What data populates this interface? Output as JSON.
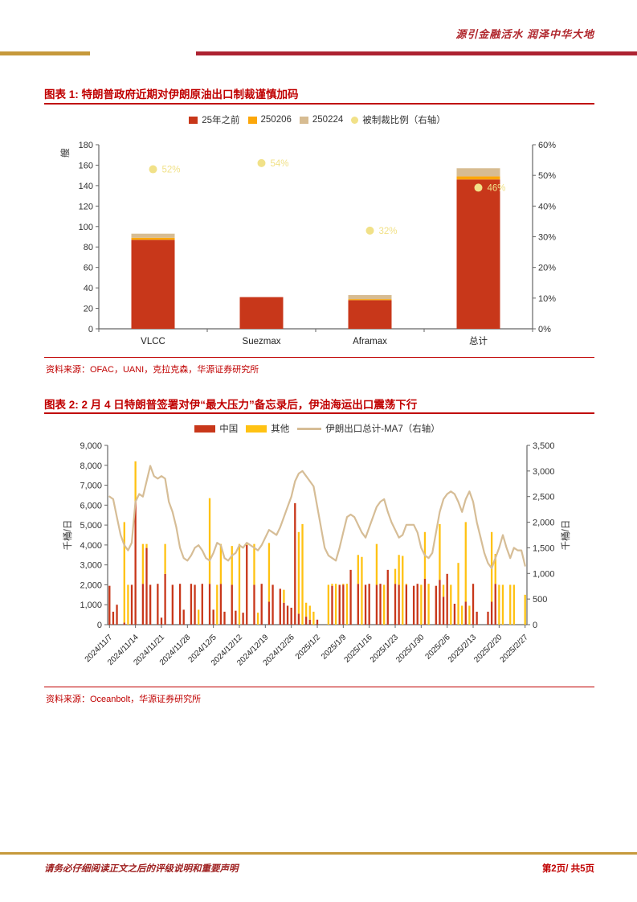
{
  "page": {
    "slogan": "源引金融活水 润泽中华大地",
    "footer_disclaimer": "请务必仔细阅读正文之后的评级说明和重要声明",
    "page_number": "第2页/ 共5页"
  },
  "colors": {
    "title_red": "#C00000",
    "rule_gold": "#C6993B",
    "rule_red": "#AD2231",
    "bar_red": "#C8371A",
    "fig1_yellow": "#FCA70A",
    "fig1_tan": "#D7BC92",
    "fig2_yellow": "#FFC213",
    "ma7_tan": "#D6BD96",
    "scatter_yellow": "#F1E188"
  },
  "figure1": {
    "title": "图表 1: 特朗普政府近期对伊朗原油出口制裁谨慎加码",
    "source": "资料来源：OFAC，UANI，克拉克森，华源证券研究所",
    "legend": [
      {
        "label": "25年之前"
      },
      {
        "label": "250206"
      },
      {
        "label": "250224"
      },
      {
        "label": "被制裁比例（右轴）"
      }
    ]
  },
  "figure2": {
    "title": "图表 2: 2 月 4 日特朗普签署对伊“最大压力”备忘录后，伊油海运出口震荡下行",
    "source": "资料来源：Oceanbolt，华源证券研究所",
    "legend": [
      {
        "label": "中国"
      },
      {
        "label": "其他"
      },
      {
        "label": "伊朗出口总计-MA7（右轴）"
      }
    ]
  },
  "chart_data": [
    {
      "type": "bar",
      "title": "特朗普政府近期对伊朗原油出口制裁谨慎加码",
      "categories": [
        "VLCC",
        "Suezmax",
        "Aframax",
        "总计"
      ],
      "series": [
        {
          "name": "25年之前",
          "type": "bar",
          "color": "#C8371A",
          "values": [
            87,
            31,
            28,
            146
          ]
        },
        {
          "name": "250206",
          "type": "bar",
          "color": "#FCA70A",
          "values": [
            2,
            0,
            1,
            3
          ]
        },
        {
          "name": "250224",
          "type": "bar",
          "color": "#D7BC92",
          "values": [
            4,
            0,
            4,
            8
          ]
        },
        {
          "name": "被制裁比例（右轴）",
          "type": "scatter",
          "axis": "right",
          "color": "#F1E188",
          "values": [
            52,
            54,
            32,
            46
          ],
          "labels": [
            "52%",
            "54%",
            "32%",
            "46%"
          ]
        }
      ],
      "ylabel_left": "艘",
      "ylim_left": [
        0,
        180
      ],
      "yticks_left": [
        0,
        20,
        40,
        60,
        80,
        100,
        120,
        140,
        160,
        180
      ],
      "ylim_right": [
        0,
        60
      ],
      "yticks_right": [
        "0%",
        "10%",
        "20%",
        "30%",
        "40%",
        "50%",
        "60%"
      ],
      "legend_position": "top",
      "grid": false
    },
    {
      "type": "bar+line",
      "title": "2 月 4 日特朗普签署对伊“最大压力”备忘录后，伊油海运出口震荡下行",
      "n_days": 113,
      "xtick_labels": [
        "2024/11/7",
        "2024/11/14",
        "2024/11/21",
        "2024/11/28",
        "2024/12/5",
        "2024/12/12",
        "2024/12/19",
        "2024/12/26",
        "2025/1/2",
        "2025/1/9",
        "2025/1/16",
        "2025/1/23",
        "2025/1/30",
        "2025/2/6",
        "2025/2/13",
        "2025/2/20",
        "2025/2/27"
      ],
      "xtick_every": 7,
      "ylabel_left": "千桶/日",
      "ylabel_right": "千桶/日",
      "ylim_left": [
        0,
        9000
      ],
      "yticks_left": [
        "0",
        "1,000",
        "2,000",
        "3,000",
        "4,000",
        "5,000",
        "6,000",
        "7,000",
        "8,000",
        "9,000"
      ],
      "ylim_right": [
        0,
        3500
      ],
      "yticks_right": [
        "0",
        "500",
        "1,000",
        "1,500",
        "2,000",
        "2,500",
        "3,000",
        "3,500"
      ],
      "series": [
        {
          "name": "中国",
          "type": "bar",
          "color": "#C8371A",
          "values": [
            1950,
            650,
            1000,
            0,
            100,
            0,
            2000,
            6150,
            0,
            2050,
            3850,
            2000,
            0,
            2050,
            350,
            2550,
            0,
            2000,
            0,
            2050,
            750,
            0,
            2050,
            2000,
            0,
            2050,
            0,
            2050,
            750,
            0,
            2050,
            650,
            0,
            2000,
            700,
            0,
            600,
            4000,
            0,
            2000,
            0,
            2050,
            0,
            1150,
            2000,
            0,
            1800,
            1100,
            950,
            850,
            6100,
            550,
            0,
            400,
            250,
            0,
            250,
            0,
            0,
            0,
            1950,
            0,
            2000,
            2000,
            0,
            2750,
            0,
            2050,
            0,
            2000,
            2050,
            0,
            2000,
            2050,
            0,
            2750,
            0,
            2050,
            2000,
            0,
            2000,
            0,
            1950,
            2050,
            0,
            2300,
            0,
            0,
            1950,
            2250,
            1400,
            2550,
            0,
            1050,
            0,
            0,
            1150,
            0,
            2050,
            650,
            0,
            0,
            650,
            1150,
            2050,
            0,
            0,
            0,
            0,
            0,
            0,
            0,
            0
          ]
        },
        {
          "name": "其他",
          "type": "bar",
          "color": "#FFC213",
          "values": [
            0,
            0,
            0,
            0,
            5050,
            2000,
            0,
            2050,
            0,
            2000,
            200,
            0,
            0,
            0,
            0,
            1500,
            0,
            0,
            0,
            0,
            0,
            0,
            0,
            0,
            750,
            0,
            0,
            4300,
            0,
            2000,
            2000,
            0,
            0,
            1950,
            0,
            4050,
            0,
            50,
            0,
            2050,
            600,
            0,
            0,
            2950,
            0,
            0,
            0,
            650,
            0,
            0,
            0,
            4100,
            5050,
            700,
            700,
            650,
            0,
            0,
            0,
            2000,
            100,
            2050,
            0,
            50,
            2050,
            0,
            0,
            1450,
            3400,
            0,
            0,
            0,
            2050,
            0,
            2000,
            0,
            0,
            750,
            1500,
            3450,
            50,
            0,
            0,
            0,
            2000,
            2350,
            2050,
            0,
            0,
            2800,
            600,
            0,
            2000,
            0,
            3100,
            950,
            4000,
            950,
            0,
            0,
            0,
            0,
            0,
            3500,
            1500,
            2000,
            2000,
            0,
            2000,
            2000,
            0,
            0,
            1500
          ]
        },
        {
          "name": "伊朗出口总计-MA7（右轴）",
          "type": "line",
          "axis": "right",
          "color": "#D6BD96",
          "values": [
            2500,
            2450,
            2100,
            1750,
            1550,
            1450,
            1600,
            2400,
            2550,
            2500,
            2800,
            3100,
            2900,
            2850,
            2900,
            2850,
            2400,
            2200,
            1900,
            1500,
            1300,
            1250,
            1350,
            1500,
            1550,
            1450,
            1300,
            1250,
            1400,
            1600,
            1550,
            1300,
            1250,
            1350,
            1400,
            1550,
            1500,
            1600,
            1550,
            1500,
            1450,
            1550,
            1700,
            1850,
            1800,
            1750,
            1900,
            2100,
            2300,
            2500,
            2800,
            2950,
            3000,
            2900,
            2800,
            2700,
            2300,
            1900,
            1500,
            1350,
            1300,
            1250,
            1500,
            1800,
            2100,
            2150,
            2100,
            1950,
            1800,
            1700,
            1900,
            2100,
            2300,
            2400,
            2450,
            2200,
            2000,
            1850,
            1700,
            1750,
            1950,
            1950,
            1950,
            1800,
            1500,
            1350,
            1300,
            1400,
            1800,
            2200,
            2450,
            2550,
            2600,
            2550,
            2400,
            2200,
            2450,
            2600,
            2400,
            2000,
            1700,
            1400,
            1200,
            1100,
            1300,
            1500,
            1750,
            1500,
            1300,
            1500,
            1450,
            1450,
            1150
          ]
        }
      ],
      "legend_position": "top",
      "grid": false
    }
  ]
}
